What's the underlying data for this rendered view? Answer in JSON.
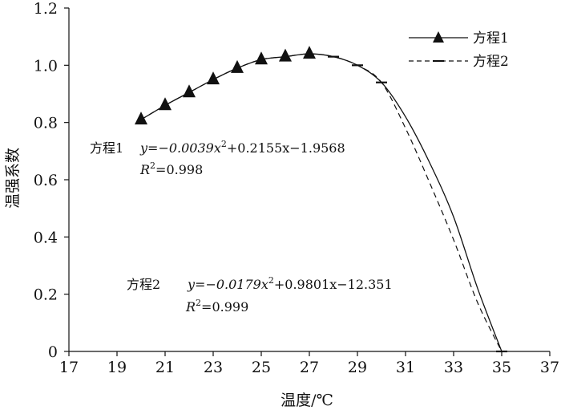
{
  "chart_data": {
    "type": "line",
    "xlabel": "温度/℃",
    "ylabel": "温强系数",
    "xlim": [
      17,
      37
    ],
    "ylim": [
      0,
      1.2
    ],
    "x_ticks": [
      "17",
      "19",
      "21",
      "23",
      "25",
      "27",
      "29",
      "31",
      "33",
      "35",
      "37"
    ],
    "y_ticks": [
      "0",
      "0.2",
      "0.4",
      "0.6",
      "0.8",
      "1.0",
      "1.2"
    ],
    "grid": false,
    "legend_position": "top-right",
    "series": [
      {
        "name": "方程1",
        "style": "solid line with triangle markers",
        "color": "#111111",
        "x": [
          20,
          21,
          22,
          23,
          24,
          25,
          26,
          27,
          28,
          29,
          30,
          31,
          32,
          33,
          34,
          35
        ],
        "y": [
          0.81,
          0.86,
          0.905,
          0.95,
          0.99,
          1.02,
          1.03,
          1.04,
          1.03,
          1.0,
          0.94,
          0.82,
          0.66,
          0.47,
          0.22,
          0.0
        ],
        "marker_x": [
          20,
          21,
          22,
          23,
          24,
          25,
          26,
          27
        ]
      },
      {
        "name": "方程2",
        "style": "dashed line with dash markers",
        "color": "#111111",
        "x": [
          20,
          21,
          22,
          23,
          24,
          25,
          26,
          27,
          28,
          29,
          30,
          31,
          32,
          33,
          34,
          35
        ],
        "y": [
          0.81,
          0.86,
          0.905,
          0.95,
          0.99,
          1.02,
          1.03,
          1.04,
          1.03,
          1.0,
          0.94,
          0.78,
          0.59,
          0.39,
          0.17,
          0.0
        ],
        "marker_x": [
          28,
          29,
          30,
          35
        ]
      }
    ],
    "annotations": {
      "eq1": {
        "label": "方程1",
        "formula_a": "y=−0.0039x",
        "sup_a": "2",
        "formula_b": "+0.2155x−1.9568",
        "r2_r": "R",
        "r2_sup": "2",
        "r2_val": "=0.998"
      },
      "eq2": {
        "label": "方程2",
        "formula_a": "y=−0.0179x",
        "sup_a": "2",
        "formula_b": "+0.9801x−12.351",
        "r2_r": "R",
        "r2_sup": "2",
        "r2_val": "=0.999"
      }
    }
  }
}
